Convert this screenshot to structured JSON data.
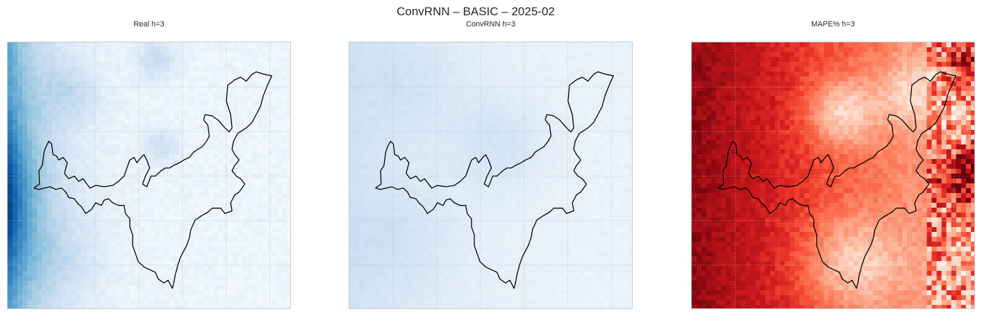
{
  "figure": {
    "suptitle": "ConvRNN – BASIC – 2025-02"
  },
  "colors": {
    "blues_light": "#f7fbff",
    "blues_dark": "#08306b",
    "reds_light": "#fff5f0",
    "reds_dark": "#67000d",
    "outline": "#000000",
    "frame": "#c7cad1"
  },
  "chart_data": [
    {
      "type": "heatmap",
      "title": "Real h=3",
      "colormap": "Blues",
      "grid": true
    },
    {
      "type": "heatmap",
      "title": "ConvRNN h=3",
      "colormap": "Blues",
      "grid": true
    },
    {
      "type": "heatmap",
      "title": "MAPE% h=3",
      "colormap": "Reds",
      "grid": true
    }
  ]
}
